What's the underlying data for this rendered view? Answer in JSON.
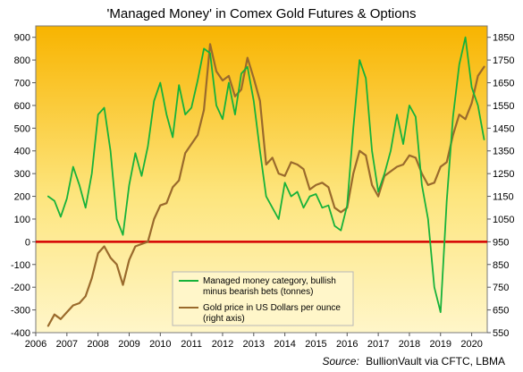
{
  "chart_data": {
    "type": "line",
    "title": "'Managed Money' in Comex Gold Futures & Options",
    "source": {
      "prefix": "Source:",
      "text": "BullionVault via CFTC, LBMA"
    },
    "x_ticks": [
      "2006",
      "2007",
      "2008",
      "2009",
      "2010",
      "2011",
      "2012",
      "2013",
      "2014",
      "2015",
      "2016",
      "2017",
      "2018",
      "2019",
      "2020"
    ],
    "x_range": [
      2006,
      2020.5
    ],
    "y_left": {
      "range": [
        -400,
        950
      ],
      "ticks": [
        "900",
        "800",
        "700",
        "600",
        "500",
        "400",
        "300",
        "200",
        "100",
        "0",
        "-100",
        "-200",
        "-300",
        "-400"
      ]
    },
    "y_right": {
      "range": [
        550,
        1900
      ],
      "ticks": [
        "1850",
        "1750",
        "1650",
        "1550",
        "1450",
        "1350",
        "1250",
        "1150",
        "1050",
        "950",
        "850",
        "750",
        "650",
        "550"
      ]
    },
    "zero_line_color": "#d40000",
    "background_gradient": [
      "#f8b400",
      "#fde57d",
      "#fff6c9"
    ],
    "legend": {
      "placement": "bottom-center",
      "entries": [
        {
          "text_lines": [
            "Managed money category, bullish",
            "minus bearish bets (tonnes)"
          ],
          "color": "#17b23a"
        },
        {
          "text_lines": [
            "Gold price in US Dollars per ounce",
            "(right axis)"
          ],
          "color": "#9a6a2c"
        }
      ]
    },
    "series": [
      {
        "name": "Managed money category, bullish minus bearish bets (tonnes)",
        "axis": "left",
        "color": "#17b23a",
        "x": [
          2006.4,
          2006.6,
          2006.8,
          2007.0,
          2007.2,
          2007.4,
          2007.6,
          2007.8,
          2008.0,
          2008.2,
          2008.4,
          2008.6,
          2008.8,
          2009.0,
          2009.2,
          2009.4,
          2009.6,
          2009.8,
          2010.0,
          2010.2,
          2010.4,
          2010.6,
          2010.8,
          2011.0,
          2011.2,
          2011.4,
          2011.6,
          2011.8,
          2012.0,
          2012.2,
          2012.4,
          2012.6,
          2012.8,
          2013.0,
          2013.2,
          2013.4,
          2013.6,
          2013.8,
          2014.0,
          2014.2,
          2014.4,
          2014.6,
          2014.8,
          2015.0,
          2015.2,
          2015.4,
          2015.6,
          2015.8,
          2016.0,
          2016.2,
          2016.4,
          2016.6,
          2016.8,
          2017.0,
          2017.2,
          2017.4,
          2017.6,
          2017.8,
          2018.0,
          2018.2,
          2018.4,
          2018.6,
          2018.8,
          2019.0,
          2019.2,
          2019.4,
          2019.6,
          2019.8,
          2020.0,
          2020.2,
          2020.4
        ],
        "values": [
          200,
          180,
          110,
          190,
          330,
          250,
          150,
          300,
          560,
          590,
          400,
          100,
          30,
          250,
          390,
          290,
          420,
          620,
          700,
          560,
          460,
          690,
          560,
          590,
          710,
          850,
          830,
          600,
          540,
          700,
          560,
          740,
          770,
          620,
          400,
          200,
          150,
          100,
          260,
          200,
          220,
          150,
          200,
          210,
          150,
          160,
          70,
          50,
          160,
          500,
          800,
          720,
          400,
          220,
          300,
          400,
          560,
          430,
          600,
          550,
          250,
          100,
          -200,
          -310,
          180,
          550,
          780,
          900,
          680,
          600,
          450
        ]
      },
      {
        "name": "Gold price in US Dollars per ounce (right axis)",
        "axis": "right",
        "color": "#9a6a2c",
        "x": [
          2006.4,
          2006.6,
          2006.8,
          2007.0,
          2007.2,
          2007.4,
          2007.6,
          2007.8,
          2008.0,
          2008.2,
          2008.4,
          2008.6,
          2008.8,
          2009.0,
          2009.2,
          2009.4,
          2009.6,
          2009.8,
          2010.0,
          2010.2,
          2010.4,
          2010.6,
          2010.8,
          2011.0,
          2011.2,
          2011.4,
          2011.6,
          2011.8,
          2012.0,
          2012.2,
          2012.4,
          2012.6,
          2012.8,
          2013.0,
          2013.2,
          2013.4,
          2013.6,
          2013.8,
          2014.0,
          2014.2,
          2014.4,
          2014.6,
          2014.8,
          2015.0,
          2015.2,
          2015.4,
          2015.6,
          2015.8,
          2016.0,
          2016.2,
          2016.4,
          2016.6,
          2016.8,
          2017.0,
          2017.2,
          2017.4,
          2017.6,
          2017.8,
          2018.0,
          2018.2,
          2018.4,
          2018.6,
          2018.8,
          2019.0,
          2019.2,
          2019.4,
          2019.6,
          2019.8,
          2020.0,
          2020.2,
          2020.4
        ],
        "values": [
          580,
          630,
          610,
          640,
          670,
          680,
          710,
          790,
          900,
          930,
          880,
          850,
          760,
          870,
          930,
          940,
          950,
          1050,
          1110,
          1120,
          1190,
          1220,
          1340,
          1380,
          1420,
          1530,
          1820,
          1700,
          1660,
          1680,
          1590,
          1620,
          1760,
          1670,
          1570,
          1290,
          1320,
          1250,
          1240,
          1300,
          1290,
          1270,
          1180,
          1200,
          1210,
          1190,
          1100,
          1080,
          1100,
          1250,
          1350,
          1330,
          1200,
          1150,
          1240,
          1260,
          1280,
          1290,
          1330,
          1320,
          1250,
          1200,
          1210,
          1280,
          1300,
          1420,
          1510,
          1490,
          1560,
          1680,
          1720
        ]
      }
    ]
  }
}
